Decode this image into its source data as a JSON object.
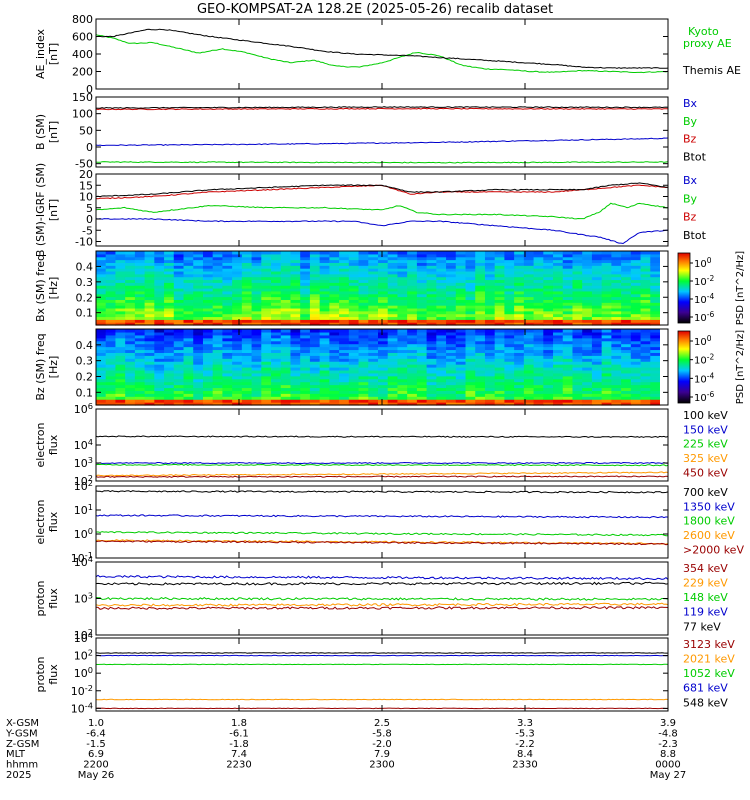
{
  "title": "GEO-KOMPSAT-2A 128.2E (2025-05-26) recalib dataset",
  "colorbar_ticks": [
    "10^0",
    "10^-2",
    "10^-4",
    "10^-6"
  ],
  "colorbar_label": "PSD [nT^2/Hz]",
  "orbit": {
    "row_labels": [
      "X-GSM",
      "Y-GSM",
      "Z-GSM",
      "MLT",
      "hhmm",
      "2025"
    ],
    "columns": [
      [
        "1.0",
        "-6.4",
        "-1.5",
        "6.9",
        "2200",
        "May 26"
      ],
      [
        "1.8",
        "-6.1",
        "-1.8",
        "7.4",
        "2230",
        ""
      ],
      [
        "2.5",
        "-5.8",
        "-2.0",
        "7.9",
        "2300",
        ""
      ],
      [
        "3.3",
        "-5.3",
        "-2.2",
        "8.4",
        "2330",
        ""
      ],
      [
        "3.9",
        "-4.8",
        "-2.3",
        "8.8",
        "0000",
        "May 27"
      ]
    ]
  },
  "chart_data": [
    {
      "type": "line",
      "ylabel": "AE_index [nT]",
      "ylim": [
        0,
        800
      ],
      "yticks": [
        0,
        200,
        400,
        600,
        800
      ],
      "series": [
        {
          "name": "Kyoto proxy AE",
          "color": "#00cc00",
          "x": [
            0,
            0.03,
            0.06,
            0.1,
            0.14,
            0.18,
            0.22,
            0.26,
            0.3,
            0.34,
            0.38,
            0.42,
            0.46,
            0.5,
            0.53,
            0.56,
            0.6,
            0.64,
            0.68,
            0.72,
            0.76,
            0.8,
            0.85,
            0.9,
            0.95,
            1
          ],
          "y": [
            620,
            580,
            520,
            530,
            470,
            410,
            460,
            420,
            350,
            300,
            330,
            260,
            250,
            300,
            360,
            420,
            380,
            270,
            230,
            220,
            200,
            190,
            210,
            200,
            190,
            200
          ]
        },
        {
          "name": "Themis AE",
          "color": "#000000",
          "x": [
            0,
            0.03,
            0.06,
            0.09,
            0.12,
            0.16,
            0.2,
            0.25,
            0.3,
            0.35,
            0.4,
            0.45,
            0.5,
            0.55,
            0.6,
            0.65,
            0.7,
            0.75,
            0.8,
            0.85,
            0.9,
            0.95,
            1
          ],
          "y": [
            600,
            600,
            640,
            680,
            680,
            640,
            600,
            560,
            520,
            480,
            430,
            400,
            390,
            380,
            360,
            340,
            320,
            300,
            280,
            250,
            240,
            240,
            240
          ]
        }
      ]
    },
    {
      "type": "line",
      "ylabel": "B (SM) [nT]",
      "ylim": [
        -60,
        150
      ],
      "yticks": [
        -50,
        0,
        50,
        100,
        150
      ],
      "series": [
        {
          "name": "Bx",
          "color": "#0000cc",
          "x": [
            0,
            0.2,
            0.4,
            0.6,
            0.8,
            1
          ],
          "y": [
            5,
            7,
            10,
            14,
            20,
            26
          ]
        },
        {
          "name": "By",
          "color": "#00cc00",
          "x": [
            0,
            0.3,
            0.6,
            1
          ],
          "y": [
            -45,
            -46,
            -47,
            -45
          ]
        },
        {
          "name": "Bz",
          "color": "#cc0000",
          "x": [
            0,
            0.5,
            1
          ],
          "y": [
            113,
            115,
            114
          ]
        },
        {
          "name": "Btot",
          "color": "#000000",
          "x": [
            0,
            0.5,
            1
          ],
          "y": [
            117,
            120,
            119
          ]
        }
      ]
    },
    {
      "type": "line",
      "ylabel": "B (SM)-IGRF (SM) [nT]",
      "ylim": [
        -12,
        20
      ],
      "yticks": [
        -10,
        -5,
        0,
        5,
        10,
        15,
        20
      ],
      "series": [
        {
          "name": "Bx",
          "color": "#0000cc",
          "x": [
            0,
            0.1,
            0.2,
            0.3,
            0.4,
            0.45,
            0.5,
            0.55,
            0.6,
            0.65,
            0.7,
            0.75,
            0.8,
            0.85,
            0.88,
            0.92,
            0.95,
            1
          ],
          "y": [
            0,
            0,
            -1,
            -1,
            -1,
            -1,
            -3,
            -1,
            -1,
            -2,
            -3,
            -4,
            -5,
            -7,
            -8,
            -11,
            -6,
            -5
          ]
        },
        {
          "name": "By",
          "color": "#00cc00",
          "x": [
            0,
            0.05,
            0.1,
            0.2,
            0.3,
            0.4,
            0.5,
            0.53,
            0.56,
            0.6,
            0.7,
            0.8,
            0.85,
            0.88,
            0.9,
            0.93,
            0.95,
            1
          ],
          "y": [
            4,
            5,
            3,
            6,
            5,
            5,
            4,
            6,
            3,
            2,
            2,
            1,
            0,
            3,
            7,
            5,
            7,
            5
          ]
        },
        {
          "name": "Bz",
          "color": "#cc0000",
          "x": [
            0,
            0.1,
            0.2,
            0.3,
            0.4,
            0.5,
            0.55,
            0.6,
            0.7,
            0.8,
            0.85,
            0.9,
            0.95,
            1
          ],
          "y": [
            9,
            10,
            12,
            13,
            14,
            15,
            11,
            12,
            12,
            12,
            13,
            14,
            15,
            14
          ]
        },
        {
          "name": "Btot",
          "color": "#000000",
          "x": [
            0,
            0.1,
            0.2,
            0.3,
            0.4,
            0.5,
            0.55,
            0.6,
            0.7,
            0.8,
            0.85,
            0.9,
            0.95,
            1
          ],
          "y": [
            10,
            11,
            13,
            14,
            15,
            15,
            12,
            12,
            13,
            13,
            13,
            15,
            16,
            14
          ]
        }
      ]
    },
    {
      "type": "heatmap",
      "ylabel": "Bx (SM) freq [Hz]",
      "ylim": [
        0.02,
        0.5
      ],
      "yticks": [
        0.1,
        0.2,
        0.3,
        0.4
      ],
      "colorbar_ticks": [
        "10^0",
        "10^-2",
        "10^-4",
        "10^-6"
      ],
      "colorbar_label": "PSD [nT^2/Hz]"
    },
    {
      "type": "heatmap",
      "ylabel": "Bz (SM) freq [Hz]",
      "ylim": [
        0.02,
        0.5
      ],
      "yticks": [
        0.1,
        0.2,
        0.3,
        0.4
      ],
      "colorbar_ticks": [
        "10^0",
        "10^-2",
        "10^-4",
        "10^-6"
      ],
      "colorbar_label": "PSD [nT^2/Hz]"
    },
    {
      "type": "line",
      "ylabel": "electron flux",
      "yscale": "log",
      "ylim": [
        100,
        1000000
      ],
      "yticks": [
        "10^2",
        "10^3",
        "10^4",
        "10^6"
      ],
      "series": [
        {
          "name": "100 keV",
          "color": "#000000",
          "x": [
            0,
            1
          ],
          "y": [
            30000,
            28000
          ]
        },
        {
          "name": "150 keV",
          "color": "#0000cc",
          "x": [
            0,
            1
          ],
          "y": [
            1000,
            1000
          ]
        },
        {
          "name": "225 keV",
          "color": "#00cc00",
          "x": [
            0,
            1
          ],
          "y": [
            800,
            750
          ]
        },
        {
          "name": "325 keV",
          "color": "#ff9900",
          "x": [
            0,
            1
          ],
          "y": [
            200,
            300
          ]
        },
        {
          "name": "450 keV",
          "color": "#990000",
          "x": [
            0,
            1
          ],
          "y": [
            170,
            180
          ]
        }
      ]
    },
    {
      "type": "line",
      "ylabel": "electron flux",
      "yscale": "log",
      "ylim": [
        0.1,
        100
      ],
      "yticks": [
        "10^-1",
        "10^0",
        "10^1",
        "10^2"
      ],
      "series": [
        {
          "name": "700 keV",
          "color": "#000000",
          "x": [
            0,
            1
          ],
          "y": [
            60,
            55
          ]
        },
        {
          "name": "1350 keV",
          "color": "#0000cc",
          "x": [
            0,
            1
          ],
          "y": [
            6,
            5
          ]
        },
        {
          "name": "1800 keV",
          "color": "#00cc00",
          "x": [
            0,
            1
          ],
          "y": [
            1.2,
            0.9
          ]
        },
        {
          "name": "2600 keV",
          "color": "#ff9900",
          "x": [
            0,
            1
          ],
          "y": [
            0.55,
            0.4
          ]
        },
        {
          "name": ">2000 keV",
          "color": "#990000",
          "x": [
            0,
            1
          ],
          "y": [
            0.5,
            0.38
          ]
        }
      ]
    },
    {
      "type": "line",
      "ylabel": "proton flux",
      "yscale": "log",
      "ylim": [
        100,
        10000
      ],
      "yticks": [
        "10^2",
        "10^3",
        "10^4"
      ],
      "series": [
        {
          "name": "354 keV",
          "color": "#990000",
          "x": [
            0,
            1
          ],
          "y": [
            540,
            560
          ]
        },
        {
          "name": "229 keV",
          "color": "#ff9900",
          "x": [
            0,
            1
          ],
          "y": [
            650,
            700
          ]
        },
        {
          "name": "148 keV",
          "color": "#00cc00",
          "x": [
            0,
            1
          ],
          "y": [
            1000,
            950
          ]
        },
        {
          "name": "119 keV",
          "color": "#0000cc",
          "x": [
            0,
            1
          ],
          "y": [
            4000,
            3500
          ]
        },
        {
          "name": "77 keV",
          "color": "#000000",
          "x": [
            0,
            1
          ],
          "y": [
            2500,
            2600
          ]
        }
      ]
    },
    {
      "type": "line",
      "ylabel": "proton flux",
      "yscale": "log",
      "ylim": [
        5e-05,
        10000
      ],
      "yticks": [
        "10^-4",
        "10^-2",
        "10^0",
        "10^2",
        "10^4"
      ],
      "series": [
        {
          "name": "3123 keV",
          "color": "#990000",
          "x": [
            0,
            1
          ],
          "y": [
            0.0001,
            0.0001
          ]
        },
        {
          "name": "2021 keV",
          "color": "#ff9900",
          "x": [
            0,
            1
          ],
          "y": [
            0.001,
            0.001
          ]
        },
        {
          "name": "1052 keV",
          "color": "#00cc00",
          "x": [
            0,
            1
          ],
          "y": [
            10,
            10
          ]
        },
        {
          "name": "681 keV",
          "color": "#0000cc",
          "x": [
            0,
            1
          ],
          "y": [
            100,
            100
          ]
        },
        {
          "name": "548 keV",
          "color": "#000000",
          "x": [
            0,
            1
          ],
          "y": [
            200,
            200
          ]
        }
      ]
    }
  ]
}
